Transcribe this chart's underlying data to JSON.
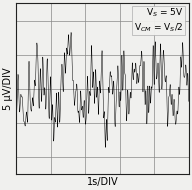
{
  "title": "",
  "ylabel": "5 µV/DIV",
  "xlabel": "1s/DIV",
  "annotation_line1": "V$_S$ = 5V",
  "annotation_line2": "V$_{CM}$ = V$_S$/2",
  "bg_color": "#f0f0ee",
  "grid_color": "#888888",
  "waveform_color": "#000000",
  "xlim": [
    0,
    10
  ],
  "ylim": [
    -5,
    5
  ],
  "xticks": [
    0,
    2,
    4,
    6,
    8,
    10
  ],
  "yticks": [
    -4,
    -2,
    0,
    2,
    4
  ],
  "n_points": 8000,
  "noise_seed": 7,
  "label_fontsize": 7,
  "annot_fontsize": 6.5
}
